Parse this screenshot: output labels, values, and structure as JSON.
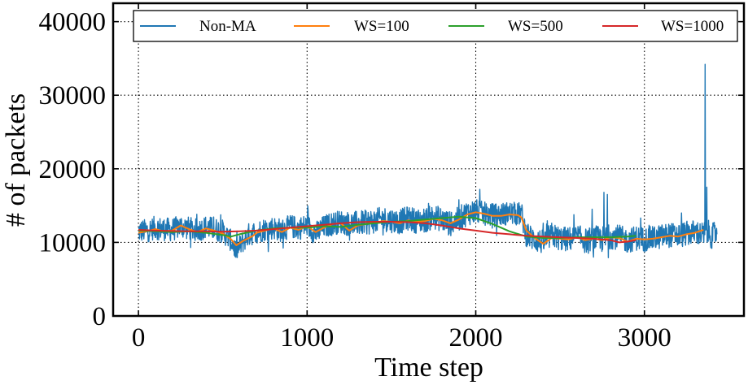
{
  "chart_data": {
    "type": "line",
    "xlabel": "Time step",
    "ylabel": "# of packets",
    "xlim": [
      -150,
      3590
    ],
    "ylim": [
      0,
      42500
    ],
    "x_ticks": [
      0,
      1000,
      2000,
      3000
    ],
    "y_ticks": [
      0,
      10000,
      20000,
      30000,
      40000
    ],
    "grid": true,
    "legend_position": "top",
    "series": [
      {
        "name": "Non-MA",
        "color": "#1f77b4",
        "x": [
          0,
          50,
          100,
          150,
          200,
          250,
          300,
          350,
          400,
          450,
          500,
          550,
          580,
          600,
          650,
          700,
          750,
          800,
          850,
          900,
          950,
          1000,
          1050,
          1100,
          1150,
          1200,
          1250,
          1300,
          1350,
          1400,
          1450,
          1500,
          1550,
          1600,
          1650,
          1700,
          1750,
          1800,
          1850,
          1900,
          1950,
          2000,
          2050,
          2100,
          2150,
          2200,
          2250,
          2270,
          2300,
          2350,
          2400,
          2450,
          2500,
          2550,
          2600,
          2650,
          2700,
          2750,
          2800,
          2850,
          2900,
          2950,
          3000,
          3050,
          3100,
          3150,
          3200,
          3250,
          3300,
          3350,
          3365,
          3380,
          3400,
          3430
        ],
        "mean": [
          11500,
          11600,
          12000,
          11800,
          11700,
          12200,
          11900,
          11600,
          12100,
          11800,
          11500,
          10200,
          8800,
          9500,
          11000,
          11400,
          11800,
          12000,
          11600,
          12200,
          11900,
          12300,
          11200,
          12100,
          12600,
          12800,
          12500,
          12600,
          12700,
          12900,
          13200,
          13000,
          12800,
          13300,
          12900,
          13000,
          13500,
          13100,
          12500,
          13200,
          14000,
          14200,
          13900,
          13700,
          13800,
          14000,
          13800,
          14000,
          11000,
          10400,
          10000,
          11000,
          10500,
          10400,
          10800,
          10200,
          10600,
          10400,
          10800,
          10700,
          10200,
          10600,
          10400,
          10500,
          10800,
          11000,
          10900,
          11200,
          11400,
          11000,
          11500,
          11300,
          10800,
          11500
        ],
        "band": [
          1600,
          1600,
          1600,
          1600,
          1600,
          1600,
          1600,
          1600,
          1600,
          1600,
          1600,
          1500,
          1400,
          1500,
          1600,
          1600,
          1600,
          1600,
          1600,
          1600,
          1600,
          1600,
          1600,
          1600,
          1600,
          1600,
          1700,
          1700,
          1700,
          1700,
          1700,
          1700,
          1700,
          1700,
          1700,
          1700,
          1700,
          1700,
          1700,
          1700,
          1700,
          1700,
          1600,
          1600,
          1600,
          1600,
          1600,
          1600,
          1700,
          1700,
          1700,
          1700,
          1700,
          1700,
          1700,
          1700,
          1700,
          1800,
          1700,
          1700,
          1700,
          1700,
          1700,
          1700,
          1700,
          1700,
          1700,
          1700,
          1700,
          1700,
          1700,
          1700,
          1700,
          1700
        ],
        "spikes": [
          [
            2760,
            16800
          ],
          [
            2780,
            16500
          ],
          [
            2690,
            14500
          ],
          [
            2420,
            12500
          ],
          [
            3360,
            34200
          ],
          [
            3370,
            17500
          ],
          [
            1900,
            15800
          ],
          [
            1720,
            15300
          ],
          [
            2190,
            14800
          ],
          [
            2875,
            15000
          ],
          [
            3220,
            14000
          ]
        ]
      },
      {
        "name": "WS=100",
        "color": "#ff7f0e",
        "x": [
          0,
          50,
          100,
          150,
          200,
          250,
          300,
          350,
          400,
          450,
          500,
          550,
          580,
          620,
          680,
          700,
          750,
          800,
          850,
          900,
          950,
          1000,
          1050,
          1100,
          1150,
          1200,
          1250,
          1300,
          1350,
          1400,
          1450,
          1500,
          1550,
          1600,
          1650,
          1700,
          1750,
          1800,
          1850,
          1900,
          1950,
          2000,
          2050,
          2100,
          2150,
          2200,
          2250,
          2270,
          2300,
          2350,
          2400,
          2450,
          2500,
          2550,
          2600,
          2650,
          2700,
          2750,
          2800,
          2850,
          2900,
          2950,
          3000,
          3050,
          3100,
          3150,
          3200,
          3250,
          3300,
          3350
        ],
        "values": [
          11300,
          11500,
          11800,
          11500,
          11600,
          12300,
          11800,
          11400,
          11900,
          11600,
          11200,
          10400,
          9600,
          10200,
          10900,
          11300,
          11600,
          11900,
          11400,
          12000,
          11700,
          12200,
          11400,
          12000,
          12500,
          12600,
          11600,
          12300,
          12500,
          12700,
          12900,
          12800,
          12600,
          13000,
          12800,
          12900,
          13200,
          13000,
          12600,
          13100,
          13800,
          14100,
          13900,
          13600,
          13600,
          13800,
          13700,
          13400,
          11600,
          10600,
          9800,
          10600,
          10500,
          10400,
          10700,
          10300,
          10500,
          10300,
          10700,
          10600,
          10100,
          10500,
          10400,
          10500,
          10700,
          10900,
          10800,
          11100,
          11300,
          11700
        ]
      },
      {
        "name": "WS=500",
        "color": "#2ca02c",
        "x": [
          0,
          100,
          200,
          300,
          400,
          500,
          550,
          600,
          700,
          800,
          900,
          1000,
          1100,
          1200,
          1300,
          1400,
          1500,
          1600,
          1700,
          1800,
          1900,
          2000,
          2100,
          2200,
          2300,
          2400,
          2500,
          2600,
          2700,
          2800,
          2900,
          2950
        ],
        "values": [
          11600,
          11500,
          11400,
          11500,
          11300,
          11000,
          10800,
          11100,
          11600,
          11900,
          12000,
          12000,
          12200,
          12100,
          12400,
          12600,
          12800,
          12900,
          13100,
          13300,
          13500,
          13300,
          12500,
          11500,
          10800,
          10600,
          10600,
          10700,
          10700,
          10700,
          10800,
          10900
        ]
      },
      {
        "name": "WS=1000",
        "color": "#d62728",
        "x": [
          0,
          100,
          200,
          300,
          400,
          500,
          600,
          700,
          800,
          900,
          1000,
          1100,
          1200,
          1300,
          1400,
          1500,
          1600,
          1700,
          1800,
          1900,
          2000,
          2100,
          2200,
          2300,
          2400,
          2500,
          2600,
          2700,
          2800,
          2850,
          2900,
          2950
        ],
        "values": [
          11700,
          11600,
          11550,
          11500,
          11500,
          11450,
          11500,
          11600,
          11800,
          12000,
          12200,
          12400,
          12600,
          12750,
          12800,
          12800,
          12750,
          12600,
          12300,
          11900,
          11600,
          11300,
          11100,
          10900,
          10800,
          10700,
          10600,
          10500,
          10300,
          10000,
          10100,
          10300
        ]
      }
    ]
  }
}
